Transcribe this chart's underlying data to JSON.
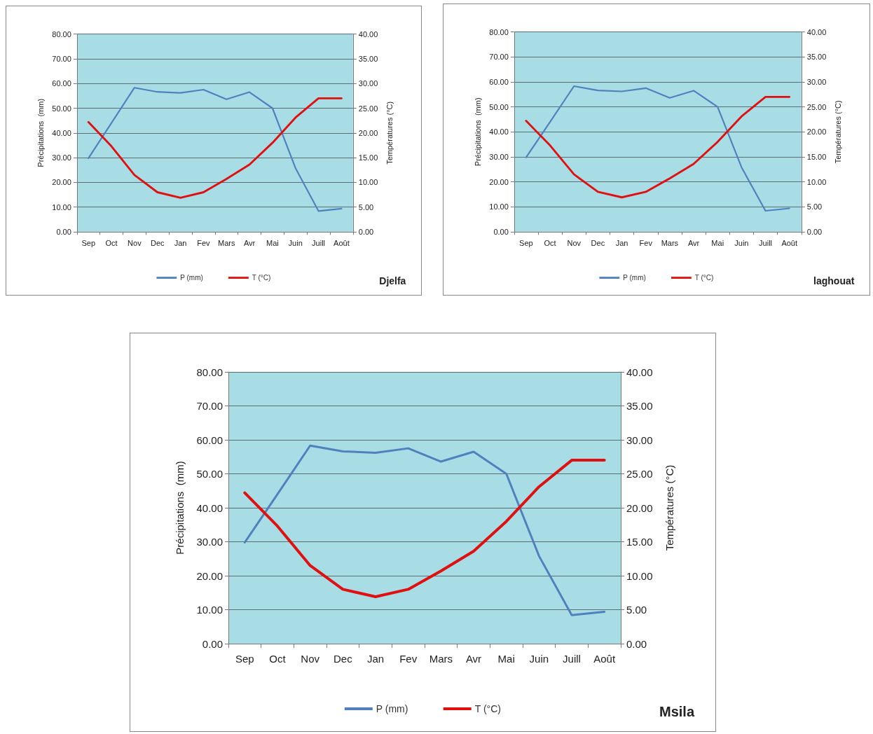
{
  "chart_data": [
    {
      "type": "line",
      "categories": [
        "Sep",
        "Oct",
        "Nov",
        "Dec",
        "Jan",
        "Fev",
        "Mars",
        "Avr",
        "Mai",
        "Juin",
        "Juill",
        "Août"
      ],
      "ylabel": "Précipitations  (mm)",
      "y2label": "Températures (°C)",
      "series": [
        {
          "name": "P (mm)",
          "color": "#4f81bd",
          "values": [
            29.8,
            44,
            58.3,
            56.6,
            56.2,
            57.5,
            53.6,
            56.5,
            50,
            25.8,
            8.4,
            9.4
          ]
        },
        {
          "name": "T (°C)",
          "color": "#e01010",
          "axis": "y2",
          "values": [
            22.2,
            17.3,
            11.5,
            8,
            6.9,
            8,
            10.7,
            13.6,
            18,
            23.1,
            27,
            27
          ]
        }
      ],
      "ylim": [
        0,
        80
      ],
      "yticks": [
        {
          "value": 0,
          "label": "0.00"
        },
        {
          "value": 10,
          "label": "10.00"
        },
        {
          "value": 20,
          "label": "20.00"
        },
        {
          "value": 30,
          "label": "30.00"
        },
        {
          "value": 40,
          "label": "40.00"
        },
        {
          "value": 50,
          "label": "50.00"
        },
        {
          "value": 60,
          "label": "60.00"
        },
        {
          "value": 70,
          "label": "70.00"
        },
        {
          "value": 80,
          "label": "80.00"
        }
      ],
      "y2lim": [
        0,
        40
      ],
      "y2ticks": [
        {
          "value": 0,
          "label": "0.00"
        },
        {
          "value": 5,
          "label": "5.00"
        },
        {
          "value": 10,
          "label": "10.00"
        },
        {
          "value": 15,
          "label": "15.00"
        },
        {
          "value": 20,
          "label": "20.00"
        },
        {
          "value": 25,
          "label": "25.00"
        },
        {
          "value": 30,
          "label": "30.00"
        },
        {
          "value": 35,
          "label": "35.00"
        },
        {
          "value": 40,
          "label": "40.00"
        }
      ],
      "grid": "y",
      "legend": "bottom",
      "marker": "none",
      "line_style": "solid",
      "annotations": [
        "Djelfa"
      ]
    },
    {
      "type": "line",
      "categories": [
        "Sep",
        "Oct",
        "Nov",
        "Dec",
        "Jan",
        "Fev",
        "Mars",
        "Avr",
        "Mai",
        "Juin",
        "Juill",
        "Août"
      ],
      "ylabel": "Précipitations  (mm)",
      "y2label": "Températures (°C)",
      "series": [
        {
          "name": "P (mm)",
          "color": "#4f81bd",
          "values": [
            29.8,
            44,
            58.3,
            56.6,
            56.2,
            57.5,
            53.6,
            56.5,
            50,
            25.8,
            8.4,
            9.4
          ]
        },
        {
          "name": "T (°C)",
          "color": "#e01010",
          "axis": "y2",
          "values": [
            22.2,
            17.3,
            11.5,
            8,
            6.9,
            8,
            10.7,
            13.6,
            18,
            23.1,
            27,
            27
          ]
        }
      ],
      "ylim": [
        0,
        80
      ],
      "yticks": [
        {
          "value": 0,
          "label": "0.00"
        },
        {
          "value": 10,
          "label": "10.00"
        },
        {
          "value": 20,
          "label": "20.00"
        },
        {
          "value": 30,
          "label": "30.00"
        },
        {
          "value": 40,
          "label": "40.00"
        },
        {
          "value": 50,
          "label": "50.00"
        },
        {
          "value": 60,
          "label": "60.00"
        },
        {
          "value": 70,
          "label": "70.00"
        },
        {
          "value": 80,
          "label": "80.00"
        }
      ],
      "y2lim": [
        0,
        40
      ],
      "y2ticks": [
        {
          "value": 0,
          "label": "0.00"
        },
        {
          "value": 5,
          "label": "5.00"
        },
        {
          "value": 10,
          "label": "10.00"
        },
        {
          "value": 15,
          "label": "15.00"
        },
        {
          "value": 20,
          "label": "20.00"
        },
        {
          "value": 25,
          "label": "25.00"
        },
        {
          "value": 30,
          "label": "30.00"
        },
        {
          "value": 35,
          "label": "35.00"
        },
        {
          "value": 40,
          "label": "40.00"
        }
      ],
      "grid": "y",
      "legend": "bottom",
      "marker": "none",
      "line_style": "solid",
      "annotations": [
        "laghouat"
      ]
    },
    {
      "type": "line",
      "categories": [
        "Sep",
        "Oct",
        "Nov",
        "Dec",
        "Jan",
        "Fev",
        "Mars",
        "Avr",
        "Mai",
        "Juin",
        "Juill",
        "Août"
      ],
      "ylabel": "Précipitations  (mm)",
      "y2label": "Températures (°C)",
      "series": [
        {
          "name": "P (mm)",
          "color": "#4f81bd",
          "values": [
            29.8,
            44,
            58.3,
            56.6,
            56.2,
            57.5,
            53.6,
            56.5,
            50,
            25.8,
            8.4,
            9.4
          ]
        },
        {
          "name": "T (°C)",
          "color": "#e01010",
          "axis": "y2",
          "values": [
            22.2,
            17.3,
            11.5,
            8,
            6.9,
            8,
            10.7,
            13.6,
            18,
            23.1,
            27,
            27
          ]
        }
      ],
      "ylim": [
        0,
        80
      ],
      "yticks": [
        {
          "value": 0,
          "label": "0.00"
        },
        {
          "value": 10,
          "label": "10.00"
        },
        {
          "value": 20,
          "label": "20.00"
        },
        {
          "value": 30,
          "label": "30.00"
        },
        {
          "value": 40,
          "label": "40.00"
        },
        {
          "value": 50,
          "label": "50.00"
        },
        {
          "value": 60,
          "label": "60.00"
        },
        {
          "value": 70,
          "label": "70.00"
        },
        {
          "value": 80,
          "label": "80.00"
        }
      ],
      "y2lim": [
        0,
        40
      ],
      "y2ticks": [
        {
          "value": 0,
          "label": "0.00"
        },
        {
          "value": 5,
          "label": "5.00"
        },
        {
          "value": 10,
          "label": "10.00"
        },
        {
          "value": 15,
          "label": "15.00"
        },
        {
          "value": 20,
          "label": "20.00"
        },
        {
          "value": 25,
          "label": "25.00"
        },
        {
          "value": 30,
          "label": "30.00"
        },
        {
          "value": 35,
          "label": "35.00"
        },
        {
          "value": 40,
          "label": "40.00"
        }
      ],
      "grid": "y",
      "legend": "bottom",
      "marker": "none",
      "line_style": "solid",
      "annotations": [
        "Msila"
      ]
    }
  ]
}
